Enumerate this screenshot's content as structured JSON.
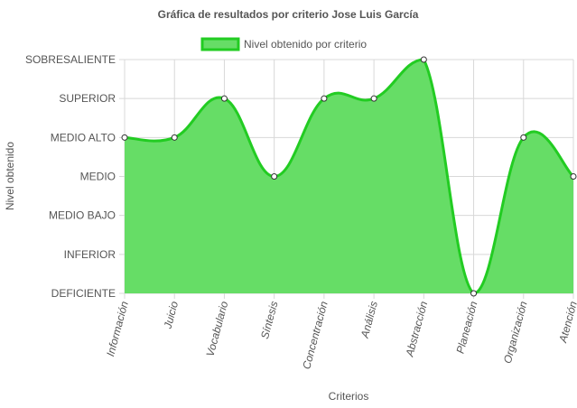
{
  "chart_data": {
    "type": "area",
    "title": "Gráfica de resultados por criterio Jose Luis García",
    "xlabel": "Criterios",
    "ylabel": "Nivel obtenido",
    "categories": [
      "Información",
      "Juicio",
      "Vocabulario",
      "Síntesis",
      "Concentración",
      "Análisis",
      "Abstracción",
      "Planeación",
      "Organización",
      "Atención"
    ],
    "y_levels": [
      "DEFICIENTE",
      "INFERIOR",
      "MEDIO BAJO",
      "MEDIO",
      "MEDIO ALTO",
      "SUPERIOR",
      "SOBRESALIENTE"
    ],
    "ylim": [
      0,
      6
    ],
    "series": [
      {
        "name": "Nivel obtenido por criterio",
        "values": [
          4,
          4,
          5,
          3,
          5,
          5,
          6,
          0,
          4,
          3
        ]
      }
    ],
    "grid": true,
    "legend": "top",
    "colors": {
      "fill": "#66dd66",
      "line": "#22cc22",
      "grid": "#d8d8d8",
      "text": "#555555"
    }
  }
}
